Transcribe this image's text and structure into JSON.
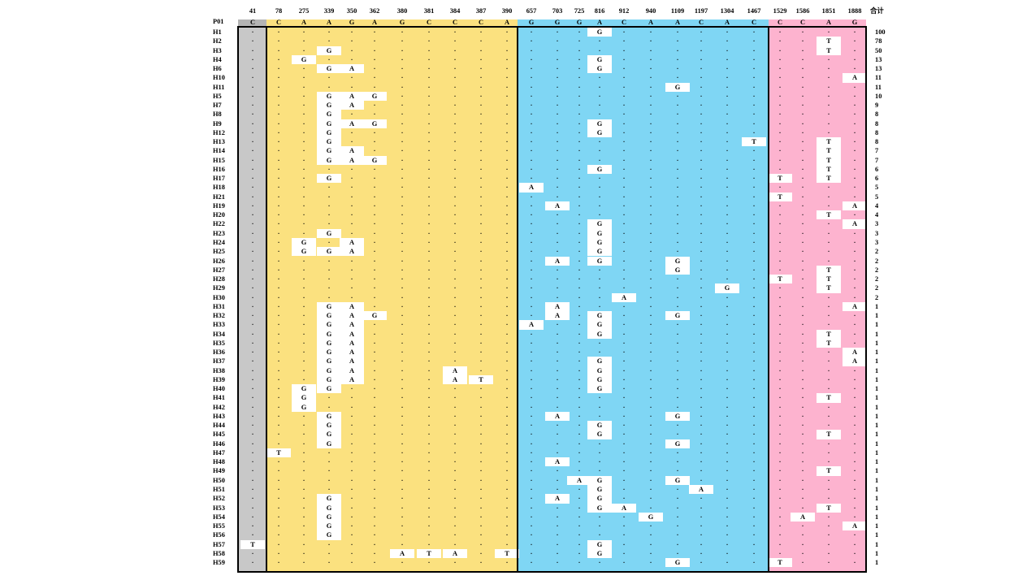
{
  "header_label": "P01",
  "total_label": "合计",
  "positions": [
    "41",
    "78",
    "275",
    "339",
    "350",
    "362",
    "380",
    "381",
    "384",
    "387",
    "390",
    "657",
    "703",
    "725",
    "816",
    "912",
    "940",
    "1109",
    "1197",
    "1304",
    "1467",
    "1529",
    "1586",
    "1851",
    "1888"
  ],
  "reference": [
    "C",
    "C",
    "A",
    "A",
    "G",
    "A",
    "G",
    "C",
    "C",
    "C",
    "A",
    "G",
    "G",
    "G",
    "A",
    "C",
    "A",
    "A",
    "C",
    "A",
    "C",
    "C",
    "C",
    "A",
    "G"
  ],
  "match_symbol": "·",
  "region_colors": [
    "#c8c8c8",
    "#fbe17f",
    "#7fd6f4",
    "#fdb3cf"
  ],
  "reference_row_color": "#b4b4b4",
  "haplotypes": [
    {
      "name": "H1",
      "count": "100",
      "muts": {
        "14": "G"
      }
    },
    {
      "name": "H2",
      "count": "78",
      "muts": {
        "23": "T"
      }
    },
    {
      "name": "H3",
      "count": "50",
      "muts": {
        "3": "G",
        "23": "T"
      }
    },
    {
      "name": "H4",
      "count": "13",
      "muts": {
        "2": "G",
        "14": "G"
      }
    },
    {
      "name": "H6",
      "count": "13",
      "muts": {
        "3": "G",
        "4": "A",
        "14": "G"
      }
    },
    {
      "name": "H10",
      "count": "11",
      "muts": {
        "24": "A"
      }
    },
    {
      "name": "H11",
      "count": "11",
      "muts": {
        "17": "G"
      }
    },
    {
      "name": "H5",
      "count": "10",
      "muts": {
        "3": "G",
        "4": "A",
        "5": "G"
      }
    },
    {
      "name": "H7",
      "count": "9",
      "muts": {
        "3": "G",
        "4": "A"
      }
    },
    {
      "name": "H8",
      "count": "8",
      "muts": {
        "3": "G"
      }
    },
    {
      "name": "H9",
      "count": "8",
      "muts": {
        "3": "G",
        "4": "A",
        "5": "G",
        "14": "G"
      }
    },
    {
      "name": "H12",
      "count": "8",
      "muts": {
        "3": "G",
        "14": "G"
      }
    },
    {
      "name": "H13",
      "count": "8",
      "muts": {
        "3": "G",
        "20": "T",
        "23": "T"
      }
    },
    {
      "name": "H14",
      "count": "7",
      "muts": {
        "3": "G",
        "4": "A",
        "23": "T"
      }
    },
    {
      "name": "H15",
      "count": "7",
      "muts": {
        "3": "G",
        "4": "A",
        "5": "G",
        "23": "T"
      }
    },
    {
      "name": "H16",
      "count": "6",
      "muts": {
        "14": "G",
        "23": "T"
      }
    },
    {
      "name": "H17",
      "count": "6",
      "muts": {
        "3": "G",
        "21": "T",
        "23": "T"
      }
    },
    {
      "name": "H18",
      "count": "5",
      "muts": {
        "11": "A"
      }
    },
    {
      "name": "H21",
      "count": "5",
      "muts": {
        "21": "T"
      }
    },
    {
      "name": "H19",
      "count": "4",
      "muts": {
        "12": "A",
        "24": "A"
      }
    },
    {
      "name": "H20",
      "count": "4",
      "muts": {
        "23": "T"
      }
    },
    {
      "name": "H22",
      "count": "3",
      "muts": {
        "14": "G",
        "24": "A"
      }
    },
    {
      "name": "H23",
      "count": "3",
      "muts": {
        "3": "G",
        "14": "G"
      }
    },
    {
      "name": "H24",
      "count": "3",
      "muts": {
        "2": "G",
        "4": "A",
        "14": "G"
      }
    },
    {
      "name": "H25",
      "count": "2",
      "muts": {
        "2": "G",
        "3": "G",
        "4": "A",
        "14": "G"
      }
    },
    {
      "name": "H26",
      "count": "2",
      "muts": {
        "12": "A",
        "14": "G",
        "17": "G"
      }
    },
    {
      "name": "H27",
      "count": "2",
      "muts": {
        "17": "G",
        "23": "T"
      }
    },
    {
      "name": "H28",
      "count": "2",
      "muts": {
        "21": "T",
        "23": "T"
      }
    },
    {
      "name": "H29",
      "count": "2",
      "muts": {
        "19": "G",
        "23": "T"
      }
    },
    {
      "name": "H30",
      "count": "2",
      "muts": {
        "15": "A"
      }
    },
    {
      "name": "H31",
      "count": "1",
      "muts": {
        "3": "G",
        "4": "A",
        "12": "A",
        "24": "A"
      }
    },
    {
      "name": "H32",
      "count": "1",
      "muts": {
        "3": "G",
        "4": "A",
        "5": "G",
        "12": "A",
        "14": "G",
        "17": "G"
      }
    },
    {
      "name": "H33",
      "count": "1",
      "muts": {
        "3": "G",
        "4": "A",
        "11": "A",
        "14": "G"
      }
    },
    {
      "name": "H34",
      "count": "1",
      "muts": {
        "3": "G",
        "4": "A",
        "14": "G",
        "23": "T"
      }
    },
    {
      "name": "H35",
      "count": "1",
      "muts": {
        "3": "G",
        "4": "A",
        "23": "T"
      }
    },
    {
      "name": "H36",
      "count": "1",
      "muts": {
        "3": "G",
        "4": "A",
        "24": "A"
      }
    },
    {
      "name": "H37",
      "count": "1",
      "muts": {
        "3": "G",
        "4": "A",
        "14": "G",
        "24": "A"
      }
    },
    {
      "name": "H38",
      "count": "1",
      "muts": {
        "3": "G",
        "4": "A",
        "8": "A",
        "14": "G"
      }
    },
    {
      "name": "H39",
      "count": "1",
      "muts": {
        "3": "G",
        "4": "A",
        "8": "A",
        "9": "T",
        "14": "G"
      }
    },
    {
      "name": "H40",
      "count": "1",
      "muts": {
        "2": "G",
        "3": "G",
        "14": "G"
      }
    },
    {
      "name": "H41",
      "count": "1",
      "muts": {
        "2": "G",
        "23": "T"
      }
    },
    {
      "name": "H42",
      "count": "1",
      "muts": {
        "2": "G"
      }
    },
    {
      "name": "H43",
      "count": "1",
      "muts": {
        "3": "G",
        "12": "A",
        "17": "G"
      }
    },
    {
      "name": "H44",
      "count": "1",
      "muts": {
        "3": "G",
        "14": "G"
      }
    },
    {
      "name": "H45",
      "count": "1",
      "muts": {
        "3": "G",
        "14": "G",
        "23": "T"
      }
    },
    {
      "name": "H46",
      "count": "1",
      "muts": {
        "3": "G",
        "17": "G"
      }
    },
    {
      "name": "H47",
      "count": "1",
      "muts": {
        "1": "T"
      }
    },
    {
      "name": "H48",
      "count": "1",
      "muts": {
        "12": "A"
      }
    },
    {
      "name": "H49",
      "count": "1",
      "muts": {
        "23": "T"
      }
    },
    {
      "name": "H50",
      "count": "1",
      "muts": {
        "13": "A",
        "14": "G",
        "17": "G"
      }
    },
    {
      "name": "H51",
      "count": "1",
      "muts": {
        "14": "G",
        "18": "A"
      }
    },
    {
      "name": "H52",
      "count": "1",
      "muts": {
        "3": "G",
        "12": "A",
        "14": "G"
      }
    },
    {
      "name": "H53",
      "count": "1",
      "muts": {
        "3": "G",
        "14": "G",
        "15": "A",
        "23": "T"
      }
    },
    {
      "name": "H54",
      "count": "1",
      "muts": {
        "3": "G",
        "16": "G",
        "22": "A"
      }
    },
    {
      "name": "H55",
      "count": "1",
      "muts": {
        "3": "G",
        "24": "A"
      }
    },
    {
      "name": "H56",
      "count": "1",
      "muts": {
        "3": "G"
      }
    },
    {
      "name": "H57",
      "count": "1",
      "muts": {
        "0": "T",
        "14": "G"
      }
    },
    {
      "name": "H58",
      "count": "1",
      "muts": {
        "6": "A",
        "7": "T",
        "8": "A",
        "10": "T",
        "14": "G"
      }
    },
    {
      "name": "H59",
      "count": "1",
      "muts": {
        "17": "G",
        "21": "T"
      }
    }
  ]
}
